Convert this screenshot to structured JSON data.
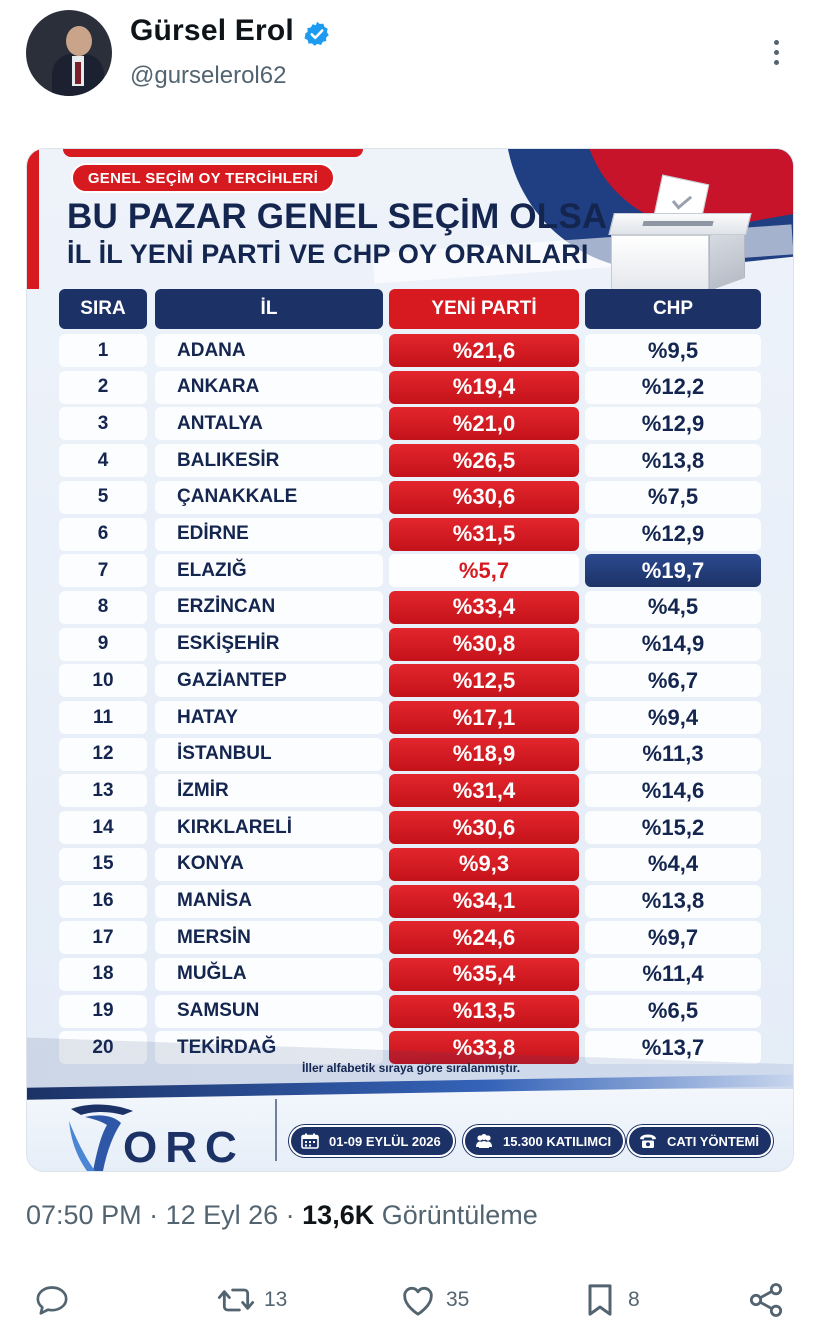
{
  "author": {
    "name": "Gürsel Erol",
    "handle": "@gurselerol62"
  },
  "poster": {
    "tag": "GENEL SEÇİM OY TERCİHLERİ",
    "title_line1": "BU PAZAR GENEL SEÇİM OLSA",
    "title_line2": "İL İL YENİ PARTİ VE CHP OY ORANLARI",
    "headers": [
      "SIRA",
      "İL",
      "YENİ PARTİ",
      "CHP"
    ],
    "rows": [
      {
        "rank": "1",
        "city": "ADANA",
        "yeni": "%21,6",
        "chp": "%9,5"
      },
      {
        "rank": "2",
        "city": "ANKARA",
        "yeni": "%19,4",
        "chp": "%12,2"
      },
      {
        "rank": "3",
        "city": "ANTALYA",
        "yeni": "%21,0",
        "chp": "%12,9"
      },
      {
        "rank": "4",
        "city": "BALIKESİR",
        "yeni": "%26,5",
        "chp": "%13,8"
      },
      {
        "rank": "5",
        "city": "ÇANAKKALE",
        "yeni": "%30,6",
        "chp": "%7,5"
      },
      {
        "rank": "6",
        "city": "EDİRNE",
        "yeni": "%31,5",
        "chp": "%12,9"
      },
      {
        "rank": "7",
        "city": "ELAZIĞ",
        "yeni": "%5,7",
        "chp": "%19,7",
        "chp_leads": true
      },
      {
        "rank": "8",
        "city": "ERZİNCAN",
        "yeni": "%33,4",
        "chp": "%4,5"
      },
      {
        "rank": "9",
        "city": "ESKİŞEHİR",
        "yeni": "%30,8",
        "chp": "%14,9"
      },
      {
        "rank": "10",
        "city": "GAZİANTEP",
        "yeni": "%12,5",
        "chp": "%6,7"
      },
      {
        "rank": "11",
        "city": "HATAY",
        "yeni": "%17,1",
        "chp": "%9,4"
      },
      {
        "rank": "12",
        "city": "İSTANBUL",
        "yeni": "%18,9",
        "chp": "%11,3"
      },
      {
        "rank": "13",
        "city": "İZMİR",
        "yeni": "%31,4",
        "chp": "%14,6"
      },
      {
        "rank": "14",
        "city": "KIRKLARELİ",
        "yeni": "%30,6",
        "chp": "%15,2"
      },
      {
        "rank": "15",
        "city": "KONYA",
        "yeni": "%9,3",
        "chp": "%4,4"
      },
      {
        "rank": "16",
        "city": "MANİSA",
        "yeni": "%34,1",
        "chp": "%13,8"
      },
      {
        "rank": "17",
        "city": "MERSİN",
        "yeni": "%24,6",
        "chp": "%9,7"
      },
      {
        "rank": "18",
        "city": "MUĞLA",
        "yeni": "%35,4",
        "chp": "%11,4"
      },
      {
        "rank": "19",
        "city": "SAMSUN",
        "yeni": "%13,5",
        "chp": "%6,5"
      },
      {
        "rank": "20",
        "city": "TEKİRDAĞ",
        "yeni": "%33,8",
        "chp": "%13,7"
      }
    ],
    "note": "İller alfabetik sıraya göre sıralanmıştır.",
    "brand": "ORC",
    "info": [
      {
        "icon": "calendar-icon",
        "label": "01-09 EYLÜL 2026"
      },
      {
        "icon": "people-icon",
        "label": "15.300 KATILIMCI"
      },
      {
        "icon": "phone-icon",
        "label": "CATI YÖNTEMİ"
      }
    ],
    "colors": {
      "red": "#d71920",
      "navy": "#1c3266"
    }
  },
  "meta": {
    "time": "07:50 PM",
    "date": "12 Eyl 26",
    "views_count": "13,6K",
    "views_label": "Görüntüleme"
  },
  "actions": {
    "reply": "",
    "retweet": "13",
    "like": "35",
    "bookmark": "8"
  }
}
